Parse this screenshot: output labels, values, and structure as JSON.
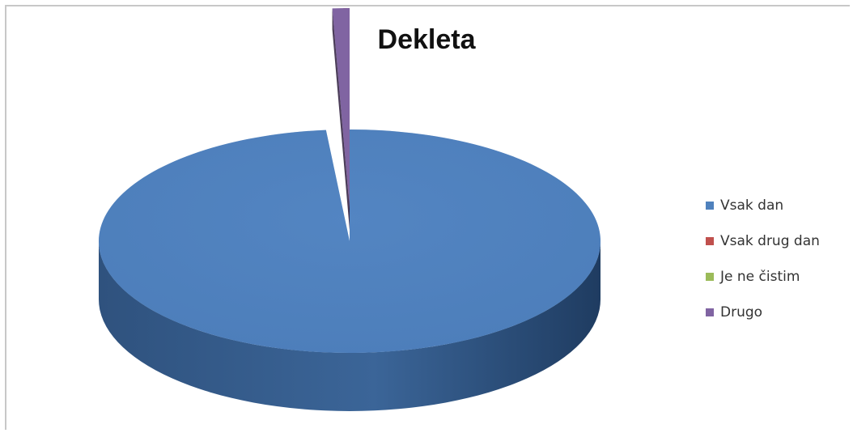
{
  "chart_data": {
    "type": "pie",
    "title": "Dekleta",
    "categories": [
      "Vsak dan",
      "Vsak drug dan",
      "Je ne čistim",
      "Drugo"
    ],
    "values": [
      98.5,
      0.4,
      0,
      1.1
    ],
    "colors": [
      "#4f81bd",
      "#c0504d",
      "#9bbb59",
      "#8064a2"
    ],
    "legend_position": "right",
    "exploded_slices": [
      "Vsak drug dan",
      "Drugo"
    ],
    "style": "3d"
  }
}
